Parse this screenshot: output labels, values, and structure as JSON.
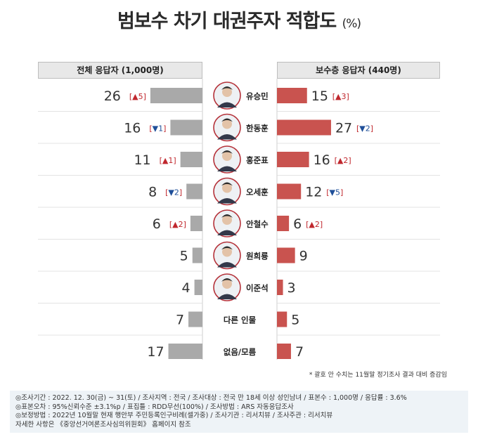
{
  "title": "범보수 차기 대권주자 적합도",
  "title_unit": "(%)",
  "chart_data": {
    "type": "bar",
    "categories": [
      "유승민",
      "한동훈",
      "홍준표",
      "오세훈",
      "안철수",
      "원희룡",
      "이준석",
      "다른 인물",
      "없음/모름"
    ],
    "series": [
      {
        "name": "전체 응답자 (1,000명)",
        "values": [
          26,
          16,
          11,
          8,
          6,
          5,
          4,
          7,
          17
        ],
        "changes": [
          "▲5",
          "▼1",
          "▲1",
          "▼2",
          "▲2",
          "",
          "",
          "",
          ""
        ],
        "color": "#a9a9a9"
      },
      {
        "name": "보수층 응답자 (440명)",
        "values": [
          15,
          27,
          16,
          12,
          6,
          9,
          3,
          5,
          7
        ],
        "changes": [
          "▲3",
          "▼2",
          "▲2",
          "▼5",
          "▲2",
          "",
          "",
          "",
          ""
        ],
        "color": "#c9534f"
      }
    ],
    "has_photo": [
      true,
      true,
      true,
      true,
      true,
      true,
      true,
      false,
      false
    ],
    "up_color": "#c0272d",
    "down_color": "#1f4f99"
  },
  "footnote": "* 괄호 안 수치는 11월말 정기조사 결과 대비 증감임",
  "info_lines": [
    "◎조사기간 : 2022. 12. 30(금) ~ 31(토) / 조사지역 : 전국 / 조사대상 : 전국 만 18세 이상 성인남녀 / 표본수 : 1,000명 / 응답률 : 3.6%",
    "◎표본오차 : 95%신뢰수준 ±3.1%p / 표집틀 : RDD무선(100%) / 조사방법 : ARS 자동응답조사",
    "◎보정방법 : 2022년 10월말 현재 행안부 주민등록인구비례(셀가중) / 조사기관 : 리서치뷰 / 조사주관 : 리서치뷰",
    "자세한 사항은 《중앙선거여론조사심의위원회》 홈페이지 참조"
  ]
}
